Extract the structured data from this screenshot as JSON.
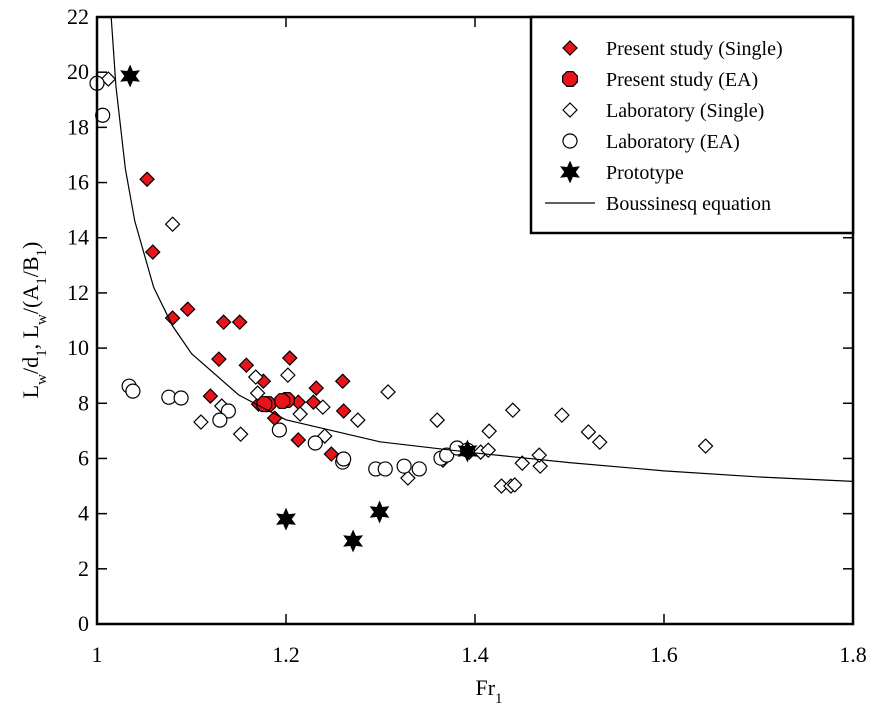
{
  "chart_data": {
    "type": "scatter",
    "xlabel": [
      "Fr",
      "1"
    ],
    "ylabel": [
      "L",
      "w",
      "/d",
      "1",
      ", L",
      "w",
      "/(A",
      "1",
      "/B",
      "1",
      ")"
    ],
    "xlim": [
      1,
      1.8
    ],
    "ylim": [
      0,
      22
    ],
    "xticks": [
      1,
      1.2,
      1.4,
      1.6,
      1.8
    ],
    "yticks": [
      0,
      2,
      4,
      6,
      8,
      10,
      12,
      14,
      16,
      18,
      20,
      22
    ],
    "legend": "upper right",
    "series": [
      {
        "name": "Present study (Single)",
        "mark": "diamond",
        "color": "#e8141a",
        "x": [
          1.053,
          1.059,
          1.08,
          1.096,
          1.134,
          1.151,
          1.129,
          1.158,
          1.204,
          1.176,
          1.12,
          1.232,
          1.26,
          1.261,
          1.213,
          1.229,
          1.171,
          1.188,
          1.213,
          1.248
        ],
        "values": [
          16.12,
          13.48,
          11.09,
          11.41,
          10.94,
          10.94,
          9.6,
          9.38,
          9.64,
          8.8,
          8.26,
          8.55,
          8.8,
          7.72,
          8.04,
          8.04,
          7.97,
          7.46,
          6.67,
          6.16
        ]
      },
      {
        "name": "Present study (EA)",
        "mark": "octagon",
        "color": "#e8141a",
        "x": [
          1.201,
          1.181,
          1.177,
          1.196
        ],
        "values": [
          8.12,
          7.97,
          7.97,
          8.08
        ]
      },
      {
        "name": "Laboratory (Single)",
        "mark": "diamond",
        "color": "#ffffff",
        "x": [
          1.012,
          1.08,
          1.168,
          1.202,
          1.11,
          1.152,
          1.17,
          1.215,
          1.239,
          1.241,
          1.276,
          1.308,
          1.36,
          1.394,
          1.406,
          1.414,
          1.415,
          1.45,
          1.44,
          1.469,
          1.468,
          1.428,
          1.438,
          1.442,
          1.492,
          1.52,
          1.532,
          1.644,
          1.329,
          1.366,
          1.132
        ],
        "values": [
          19.75,
          14.49,
          8.95,
          9.02,
          7.32,
          6.88,
          8.37,
          7.61,
          7.86,
          6.81,
          7.39,
          8.41,
          7.39,
          6.23,
          6.23,
          6.3,
          6.99,
          5.83,
          7.75,
          5.72,
          6.12,
          5.0,
          5.0,
          5.04,
          7.57,
          6.96,
          6.59,
          6.45,
          5.29,
          5.94,
          7.9
        ]
      },
      {
        "name": "Laboratory (EA)",
        "mark": "circle",
        "color": "#ffffff",
        "x": [
          1.0,
          1.006,
          1.034,
          1.038,
          1.076,
          1.089,
          1.139,
          1.13,
          1.193,
          1.231,
          1.26,
          1.261,
          1.295,
          1.305,
          1.325,
          1.341,
          1.364,
          1.37,
          1.381,
          1.392
        ],
        "values": [
          19.6,
          18.44,
          8.62,
          8.44,
          8.22,
          8.19,
          7.72,
          7.39,
          7.03,
          6.56,
          5.87,
          5.98,
          5.62,
          5.62,
          5.72,
          5.62,
          6.01,
          6.12,
          6.38,
          6.3
        ]
      },
      {
        "name": "Prototype",
        "mark": "star",
        "color": "#000000",
        "x": [
          1.035,
          1.2,
          1.271,
          1.299,
          1.392
        ],
        "values": [
          19.86,
          3.8,
          3.01,
          4.06,
          6.27
        ]
      },
      {
        "name": "Boussinesq equation",
        "mark": "line",
        "color": "#000000",
        "x": [
          1.015,
          1.02,
          1.03,
          1.04,
          1.06,
          1.08,
          1.1,
          1.15,
          1.2,
          1.3,
          1.4,
          1.5,
          1.6,
          1.7,
          1.8
        ],
        "values": [
          22,
          19.5,
          16.5,
          14.6,
          12.2,
          10.8,
          9.8,
          8.3,
          7.4,
          6.6,
          6.2,
          5.85,
          5.55,
          5.33,
          5.17
        ]
      }
    ]
  }
}
